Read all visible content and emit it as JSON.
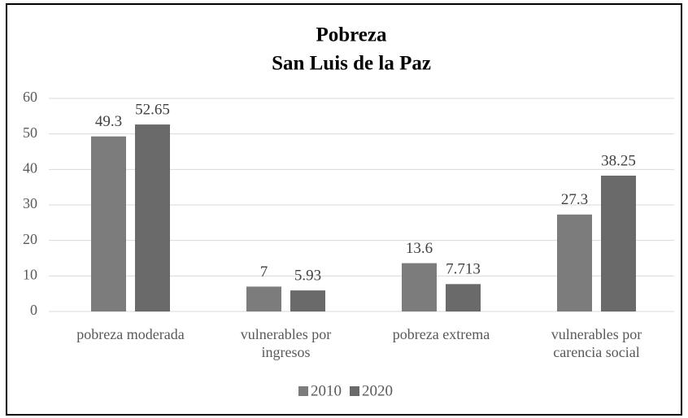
{
  "chart_data": {
    "type": "bar",
    "title": "Pobreza",
    "subtitle": "San Luis de la Paz",
    "categories": [
      "pobreza moderada",
      "vulnerables por ingresos",
      "pobreza extrema",
      "vulnerables por carencia social"
    ],
    "series": [
      {
        "name": "2010",
        "color": "#7c7c7c",
        "values": [
          49.3,
          7,
          13.6,
          27.3
        ]
      },
      {
        "name": "2020",
        "color": "#6a6a6a",
        "values": [
          52.65,
          5.93,
          7.713,
          38.25
        ]
      }
    ],
    "ylim": [
      0,
      60
    ],
    "yticks": [
      0,
      10,
      20,
      30,
      40,
      50,
      60
    ],
    "grid": true,
    "legend": "bottom"
  }
}
